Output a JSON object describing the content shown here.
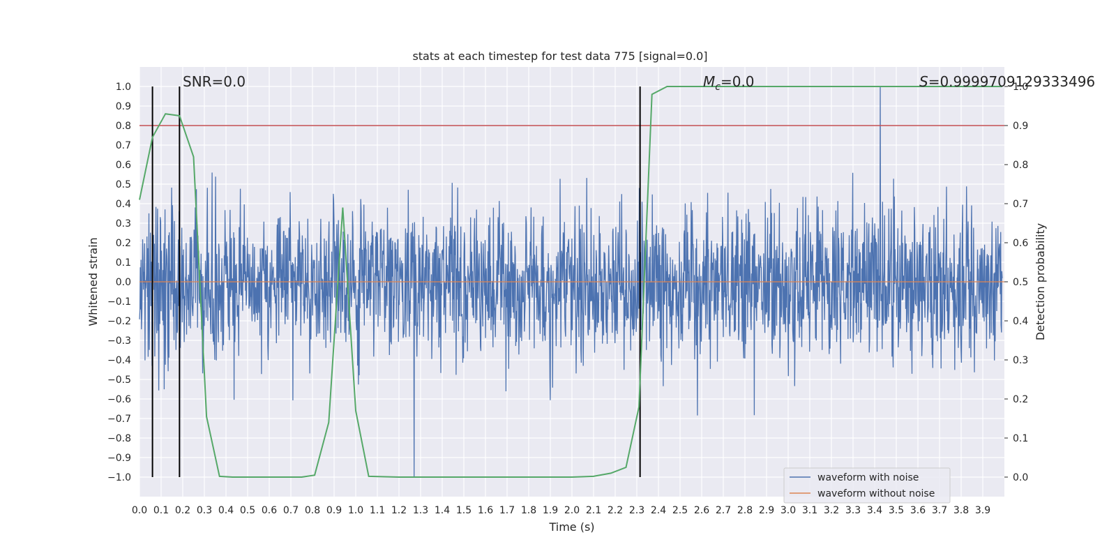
{
  "chart_data": {
    "type": "line",
    "title": "stats at each timestep for test data 775 [signal=0.0]",
    "xlabel": "Time (s)",
    "ylabel_left": "Whitened strain",
    "ylabel_right": "Detection probability",
    "xlim": [
      0.0,
      4.0
    ],
    "ylim_left": [
      -1.1,
      1.1
    ],
    "ylim_right": [
      -0.05,
      1.05
    ],
    "xticks": [
      "0.0",
      "0.1",
      "0.2",
      "0.3",
      "0.4",
      "0.5",
      "0.6",
      "0.7",
      "0.8",
      "0.9",
      "1.0",
      "1.1",
      "1.2",
      "1.3",
      "1.4",
      "1.5",
      "1.6",
      "1.7",
      "1.8",
      "1.9",
      "2.0",
      "2.1",
      "2.2",
      "2.3",
      "2.4",
      "2.5",
      "2.6",
      "2.7",
      "2.8",
      "2.9",
      "3.0",
      "3.1",
      "3.2",
      "3.3",
      "3.4",
      "3.5",
      "3.6",
      "3.7",
      "3.8",
      "3.9"
    ],
    "yticks_left": [
      "1.0",
      "0.9",
      "0.8",
      "0.7",
      "0.6",
      "0.5",
      "0.4",
      "0.3",
      "0.2",
      "0.1",
      "0.0",
      "−0.1",
      "−0.2",
      "−0.3",
      "−0.4",
      "−0.5",
      "−0.6",
      "−0.7",
      "−0.8",
      "−0.9",
      "−1.0"
    ],
    "yticks_right": [
      "1.0",
      "0.9",
      "0.8",
      "0.7",
      "0.6",
      "0.5",
      "0.4",
      "0.3",
      "0.2",
      "0.1",
      "0.0"
    ],
    "grid": true,
    "legend_position": "bottom-right",
    "annotations": {
      "snr": "SNR=0.0",
      "mc_symbol": "M",
      "mc_subscript": "c",
      "mc_value": "=0.0",
      "s_symbol": "S",
      "s_value": "=0.9999709129333496"
    },
    "threshold_line": {
      "axis": "right",
      "value": 0.9,
      "color": "#c44e52"
    },
    "vertical_lines": [
      0.06,
      0.185,
      2.315
    ],
    "series": [
      {
        "name": "waveform with noise",
        "color": "#4c72b0",
        "axis": "left",
        "kind": "noise",
        "amplitude_typical": 0.35,
        "peak_max": 1.0,
        "peak_min": -1.0
      },
      {
        "name": "waveform without noise",
        "color": "#dd8452",
        "axis": "left",
        "x": [
          0.0,
          4.0
        ],
        "y": [
          0.0,
          0.0
        ]
      },
      {
        "name": "",
        "color": "#55a868",
        "axis": "right",
        "x": [
          0.0,
          0.06,
          0.12,
          0.185,
          0.25,
          0.31,
          0.37,
          0.43,
          0.5,
          0.6,
          0.75,
          0.81,
          0.875,
          0.94,
          1.0,
          1.06,
          1.2,
          1.5,
          1.8,
          2.0,
          2.1,
          2.18,
          2.25,
          2.31,
          2.37,
          2.44,
          2.6,
          3.0,
          3.5,
          3.99
        ],
        "y": [
          0.71,
          0.87,
          0.93,
          0.925,
          0.82,
          0.155,
          0.002,
          0.0,
          0.0,
          0.0,
          0.0,
          0.005,
          0.14,
          0.69,
          0.17,
          0.002,
          0.0,
          0.0,
          0.0,
          0.0,
          0.002,
          0.01,
          0.025,
          0.18,
          0.98,
          1.0,
          1.0,
          1.0,
          1.0,
          1.0
        ]
      }
    ]
  }
}
